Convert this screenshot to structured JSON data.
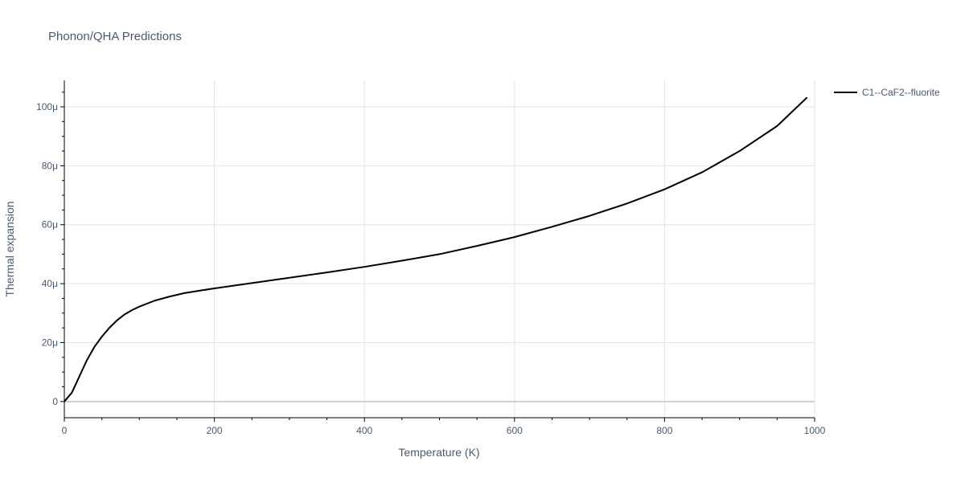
{
  "chart_data": {
    "type": "line",
    "title": "Phonon/QHA Predictions",
    "xlabel": "Temperature (K)",
    "ylabel": "Thermal expansion",
    "xlim": [
      0,
      1000
    ],
    "ylim": [
      -5.5e-06,
      0.000109
    ],
    "x_ticks": [
      {
        "value": 0,
        "label": "0"
      },
      {
        "value": 200,
        "label": "200"
      },
      {
        "value": 400,
        "label": "400"
      },
      {
        "value": 600,
        "label": "600"
      },
      {
        "value": 800,
        "label": "800"
      },
      {
        "value": 1000,
        "label": "1000"
      }
    ],
    "y_ticks": [
      {
        "value": 0,
        "label": "0"
      },
      {
        "value": 2e-05,
        "label": "20μ"
      },
      {
        "value": 4e-05,
        "label": "40μ"
      },
      {
        "value": 6e-05,
        "label": "60μ"
      },
      {
        "value": 8e-05,
        "label": "80μ"
      },
      {
        "value": 0.0001,
        "label": "100μ"
      }
    ],
    "grid": true,
    "legend_position": "top-right",
    "series": [
      {
        "name": "C1--CaF2--fluorite",
        "color": "#000000",
        "x": [
          0,
          10,
          20,
          30,
          40,
          50,
          60,
          70,
          80,
          90,
          100,
          120,
          140,
          160,
          180,
          200,
          250,
          300,
          350,
          400,
          450,
          500,
          550,
          600,
          650,
          700,
          750,
          800,
          850,
          900,
          950,
          990
        ],
        "y": [
          0,
          3e-06,
          8.5e-06,
          1.4e-05,
          1.85e-05,
          2.2e-05,
          2.5e-05,
          2.75e-05,
          2.95e-05,
          3.1e-05,
          3.22e-05,
          3.42e-05,
          3.56e-05,
          3.68e-05,
          3.76e-05,
          3.84e-05,
          4.02e-05,
          4.2e-05,
          4.38e-05,
          4.57e-05,
          4.78e-05,
          5e-05,
          5.28e-05,
          5.58e-05,
          5.93e-05,
          6.3e-05,
          6.72e-05,
          7.2e-05,
          7.78e-05,
          8.5e-05,
          9.35e-05,
          0.0001032
        ]
      }
    ]
  }
}
